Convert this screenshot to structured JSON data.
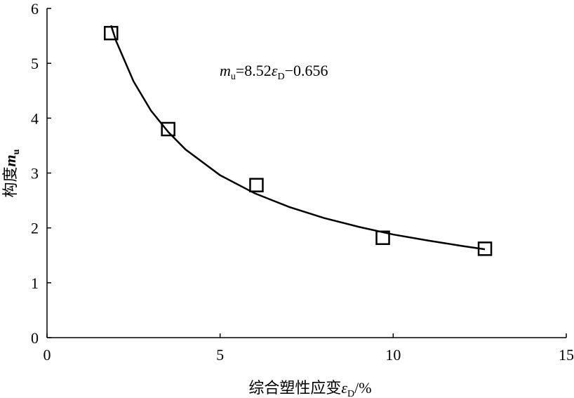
{
  "chart_data": {
    "type": "scatter",
    "xlabel": [
      "综合塑性应变",
      "ε",
      "D",
      "/%"
    ],
    "ylabel": [
      "构度",
      "m",
      "u"
    ],
    "annotation": [
      "m",
      "u",
      "=8.52",
      "ε",
      "D",
      "−0.656"
    ],
    "series": [
      {
        "mode": "markers",
        "marker": "square",
        "color": "#000000",
        "x": [
          1.85,
          3.5,
          6.05,
          9.7,
          12.65
        ],
        "values": [
          5.55,
          3.8,
          2.78,
          1.82,
          1.62
        ]
      },
      {
        "mode": "line",
        "color": "#000000",
        "x": [
          1.85,
          2,
          2.5,
          3,
          3.5,
          4,
          5,
          6,
          7,
          8,
          9,
          10,
          11,
          12,
          12.65
        ],
        "values": [
          5.69,
          5.4,
          4.67,
          4.14,
          3.75,
          3.43,
          2.96,
          2.63,
          2.38,
          2.18,
          2.02,
          1.88,
          1.77,
          1.67,
          1.61
        ]
      }
    ],
    "xlim": [
      0,
      15
    ],
    "xticks": [
      0,
      5,
      10,
      15
    ],
    "ylim": [
      0,
      6
    ],
    "yticks": [
      0,
      1,
      2,
      3,
      4,
      5,
      6
    ]
  }
}
